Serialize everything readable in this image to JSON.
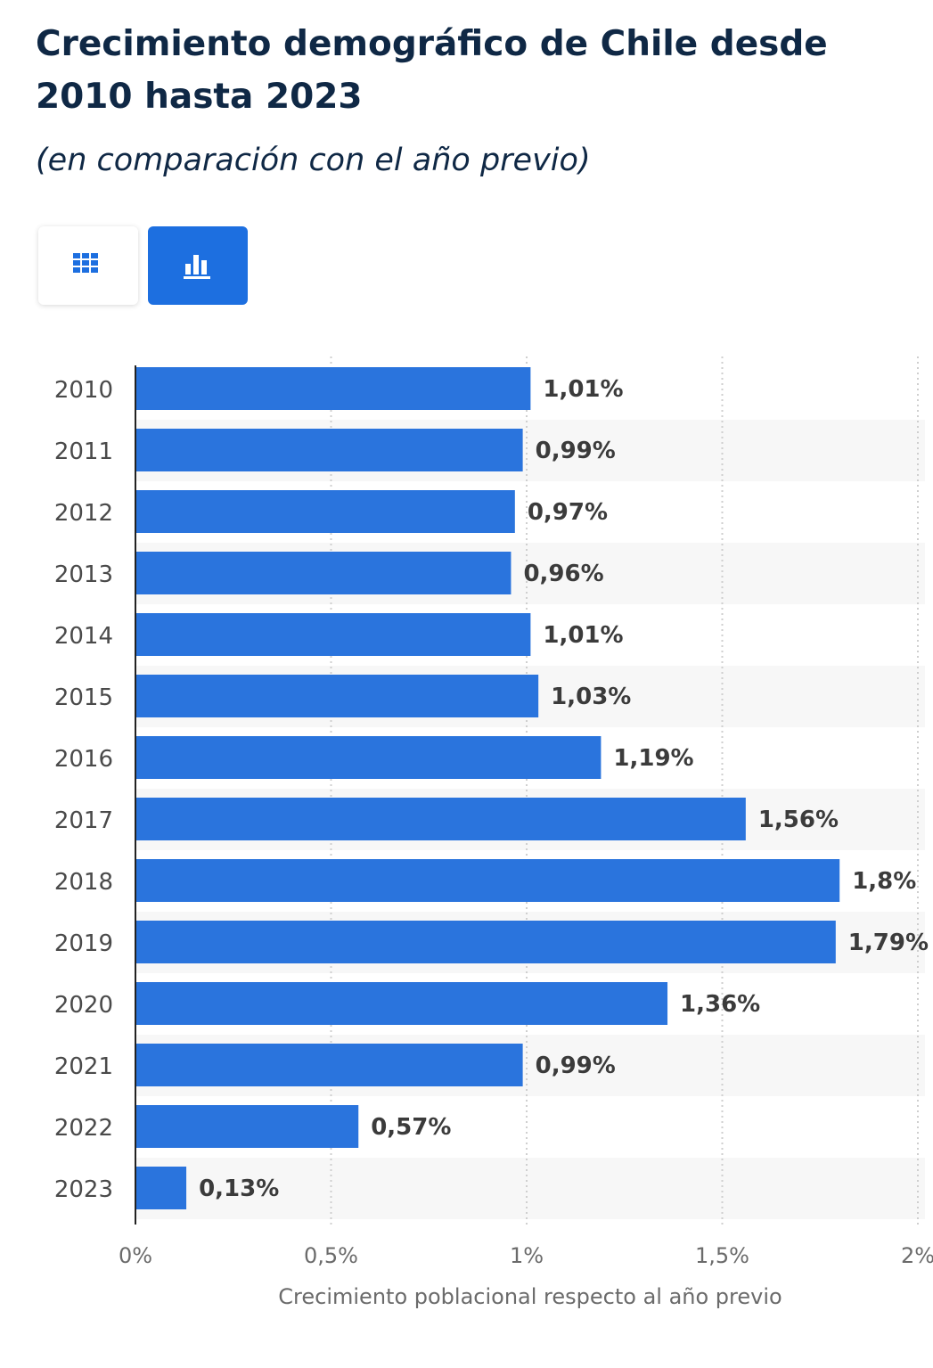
{
  "header": {
    "title": "Crecimiento demográfico de Chile desde 2010 hasta 2023",
    "subtitle": "(en comparación con el año previo)"
  },
  "view_toggle": {
    "options": [
      {
        "name": "table",
        "icon": "table-grid-icon",
        "selected": false
      },
      {
        "name": "chart",
        "icon": "bar-chart-icon",
        "selected": true
      }
    ]
  },
  "colors": {
    "bar": "#2a74dd",
    "accent": "#1d6fe0",
    "title": "#0f2845"
  },
  "chart_data": {
    "type": "bar",
    "orientation": "horizontal",
    "categories": [
      "2010",
      "2011",
      "2012",
      "2013",
      "2014",
      "2015",
      "2016",
      "2017",
      "2018",
      "2019",
      "2020",
      "2021",
      "2022",
      "2023"
    ],
    "values": [
      1.01,
      0.99,
      0.97,
      0.96,
      1.01,
      1.03,
      1.19,
      1.56,
      1.8,
      1.79,
      1.36,
      0.99,
      0.57,
      0.13
    ],
    "value_labels": [
      "1,01%",
      "0,99%",
      "0,97%",
      "0,96%",
      "1,01%",
      "1,03%",
      "1,19%",
      "1,56%",
      "1,8%",
      "1,79%",
      "1,36%",
      "0,99%",
      "0,57%",
      "0,13%"
    ],
    "x_ticks": [
      0,
      0.5,
      1,
      1.5,
      2
    ],
    "x_tick_labels": [
      "0%",
      "0,5%",
      "1%",
      "1,5%",
      "2%"
    ],
    "xlim": [
      0,
      2
    ],
    "xlabel": "Crecimiento poblacional respecto al año previo",
    "ylabel": "",
    "grid": true,
    "legend": "none"
  }
}
